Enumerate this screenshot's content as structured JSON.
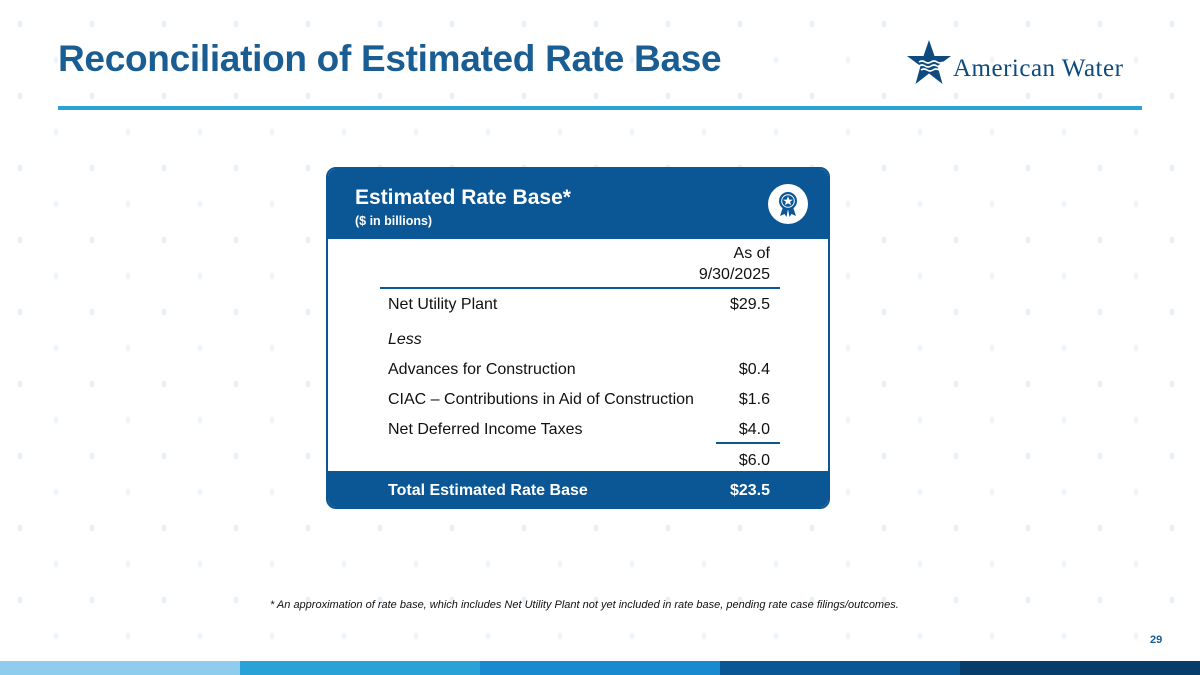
{
  "slide": {
    "title": "Reconciliation of Estimated Rate Base",
    "page_number": "29"
  },
  "logo": {
    "text": "American Water",
    "icon": "star-water-icon"
  },
  "card": {
    "title": "Estimated Rate Base*",
    "subtitle": "($ in billions)",
    "badge_icon": "award-ribbon-icon",
    "column_header_line1": "As of",
    "column_header_line2": "9/30/2025",
    "rows": [
      {
        "label": "Net Utility Plant",
        "value": "$29.5"
      },
      {
        "label": "Less",
        "value": ""
      },
      {
        "label": "Advances for Construction",
        "value": "$0.4"
      },
      {
        "label": "CIAC – Contributions in Aid of Construction",
        "value": "$1.6"
      },
      {
        "label": "Net Deferred Income Taxes",
        "value": "$4.0"
      },
      {
        "label": "",
        "value": "$6.0"
      }
    ],
    "total": {
      "label": "Total Estimated Rate Base",
      "value": "$23.5"
    }
  },
  "footnote": "* An approximation of rate base, which includes Net Utility Plant not yet included in rate base, pending rate case filings/outcomes.",
  "colors": {
    "brand_blue": "#0b5796",
    "title_blue": "#1a5d93",
    "accent_rule": "#2aa2d8",
    "bottom_bar": [
      "#8fcdee",
      "#2aa2d8",
      "#1a8ad0",
      "#0b5796",
      "#073d6b"
    ]
  }
}
